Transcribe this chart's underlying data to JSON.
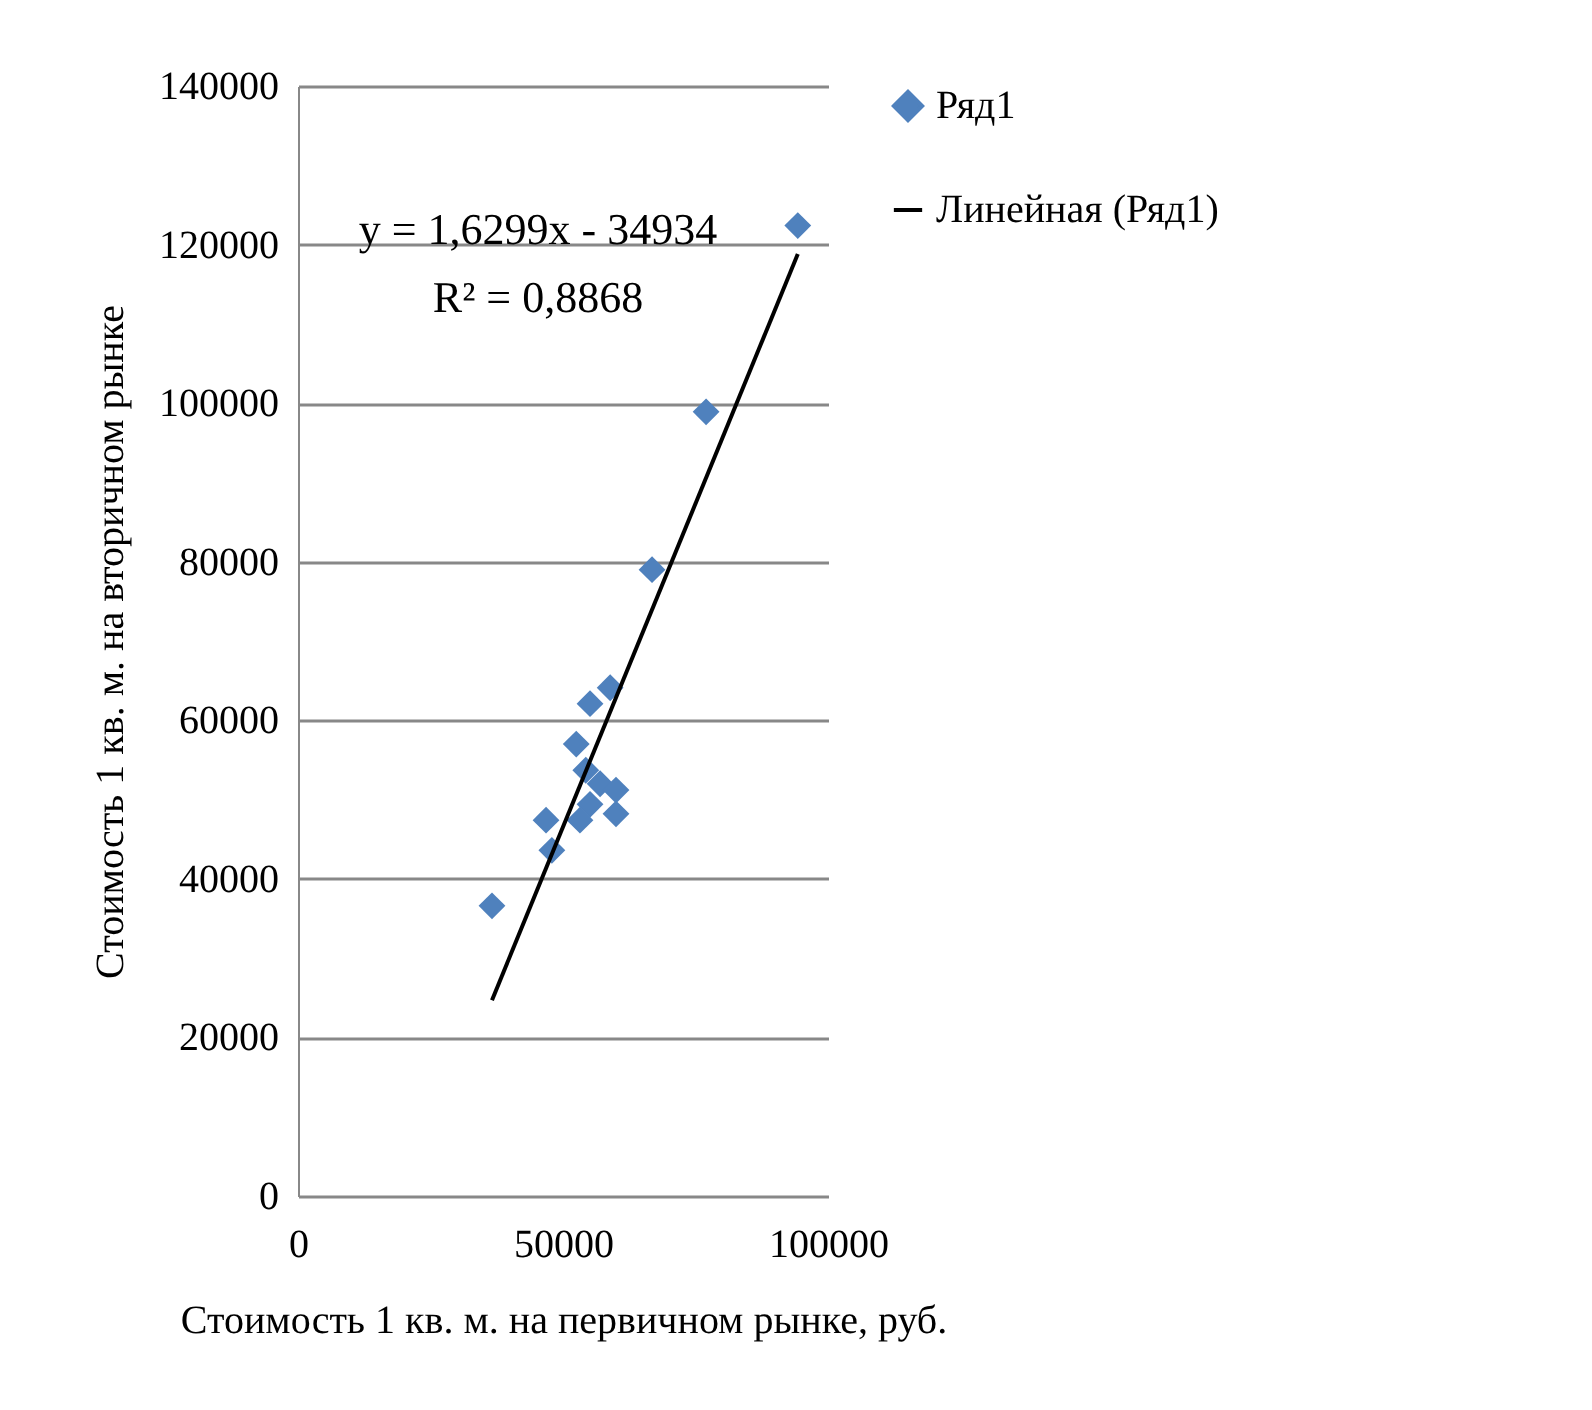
{
  "chart_data": {
    "type": "scatter",
    "xlabel": "Стоимость 1 кв. м. на первичном рынке, руб.",
    "ylabel": "Стоимость 1 кв. м. на вторичном рынке",
    "annotations": [
      "y = 1,6299x - 34934",
      "R² = 0,8868"
    ],
    "xlim": [
      0,
      100000
    ],
    "xticks": [
      0,
      50000,
      100000
    ],
    "ylim": [
      0,
      140000
    ],
    "yticks": [
      0,
      20000,
      40000,
      60000,
      80000,
      100000,
      120000,
      140000
    ],
    "grid": "y",
    "legend": "right",
    "series": [
      {
        "name": "Ряд1",
        "color": "#4f81bd",
        "marker": "diamond",
        "x": [
          94300,
          77000,
          66800,
          58900,
          55100,
          52500,
          54300,
          57000,
          60000,
          55100,
          60000,
          53200,
          46800,
          47900,
          36600
        ],
        "values": [
          122400,
          98900,
          79000,
          64100,
          62100,
          57000,
          53700,
          52000,
          51200,
          49400,
          48200,
          47400,
          47400,
          43600,
          36600
        ]
      },
      {
        "name": "Линейная (Ряд1)",
        "type": "line",
        "color": "#000000",
        "marker": "none",
        "x": [
          36600,
          94300
        ],
        "values": [
          24700,
          118800
        ]
      }
    ]
  }
}
